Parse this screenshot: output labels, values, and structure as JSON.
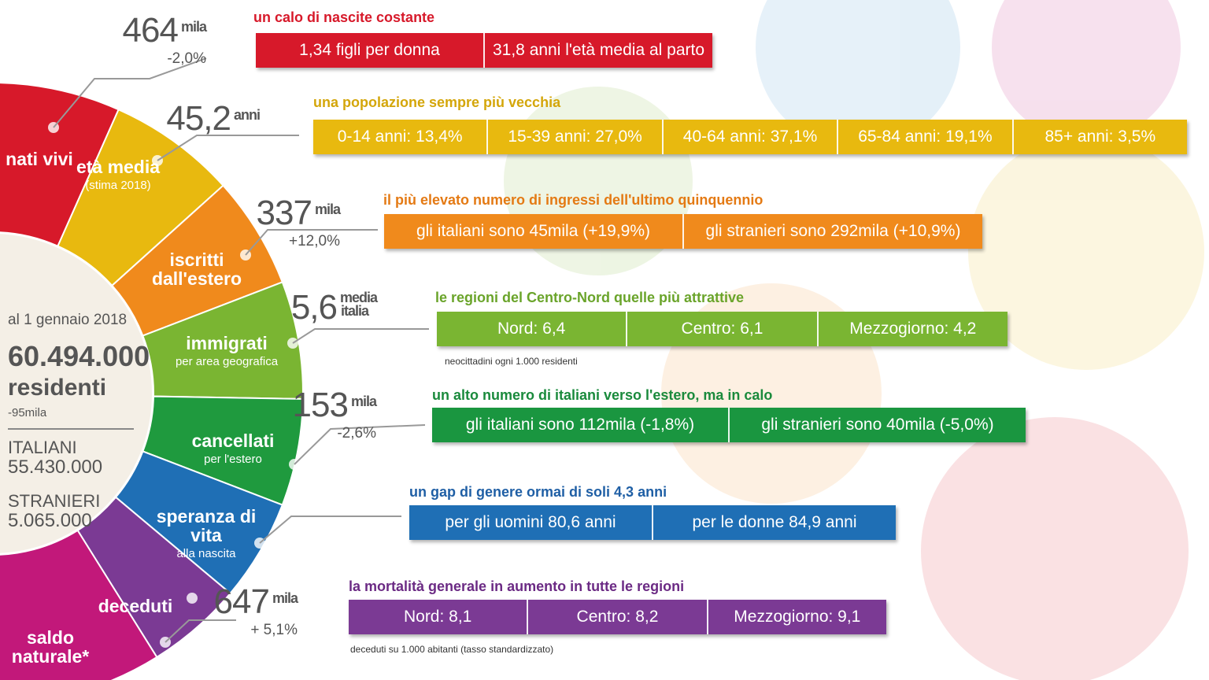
{
  "center": {
    "date": "al 1 gennaio 2018",
    "total": "60.494.000",
    "residents": "residenti",
    "change": "-95mila",
    "italians_label": "ITALIANI",
    "italians": "55.430.000",
    "foreigners_label": "STRANIERI",
    "foreigners": "5.065.000"
  },
  "wheel": {
    "segments": [
      {
        "label": "nati vivi"
      },
      {
        "label": "età media",
        "note": "(stima 2018)"
      },
      {
        "label": "iscritti dall'estero"
      },
      {
        "label": "immigrati",
        "note": "per area geografica"
      },
      {
        "label": "cancellati",
        "note": "per l'estero"
      },
      {
        "label": "speranza di vita",
        "note": "alla nascita"
      },
      {
        "label": "deceduti"
      },
      {
        "label": "saldo naturale*"
      }
    ]
  },
  "rows": [
    {
      "number": "464",
      "unit": "mila",
      "change": "-2,0%",
      "heading": "un calo di nascite costante",
      "cells": [
        "1,34 figli per donna",
        "31,8 anni l'età media al parto"
      ]
    },
    {
      "number": "45,2",
      "unit": "anni",
      "heading": "una popolazione sempre più vecchia",
      "cells": [
        "0-14 anni: 13,4%",
        "15-39 anni: 27,0%",
        "40-64 anni: 37,1%",
        "65-84 anni: 19,1%",
        "85+ anni: 3,5%"
      ]
    },
    {
      "number": "337",
      "unit": "mila",
      "change": "+12,0%",
      "heading": "il più elevato numero di ingressi dell'ultimo quinquennio",
      "cells": [
        "gli italiani sono 45mila (+19,9%)",
        "gli stranieri sono 292mila (+10,9%)"
      ]
    },
    {
      "number": "5,6",
      "unit": "media italia",
      "heading": "le regioni del Centro-Nord quelle più attrattive",
      "cells": [
        "Nord: 6,4",
        "Centro: 6,1",
        "Mezzogiorno: 4,2"
      ],
      "note": "neocittadini ogni 1.000 residenti"
    },
    {
      "number": "153",
      "unit": "mila",
      "change": "-2,6%",
      "heading": "un alto numero di italiani verso l'estero, ma in calo",
      "cells": [
        "gli italiani sono 112mila (-1,8%)",
        "gli stranieri sono 40mila (-5,0%)"
      ]
    },
    {
      "heading": "un gap di genere ormai di soli 4,3 anni",
      "cells": [
        "per gli uomini 80,6 anni",
        "per le donne 84,9 anni"
      ]
    },
    {
      "number": "647",
      "unit": "mila",
      "change": "+ 5,1%",
      "heading": "la mortalità generale in aumento in tutte le regioni",
      "cells": [
        "Nord: 8,1",
        "Centro: 8,2",
        "Mezzogiorno: 9,1"
      ],
      "note": "deceduti su 1.000 abitanti (tasso standardizzato)"
    }
  ]
}
